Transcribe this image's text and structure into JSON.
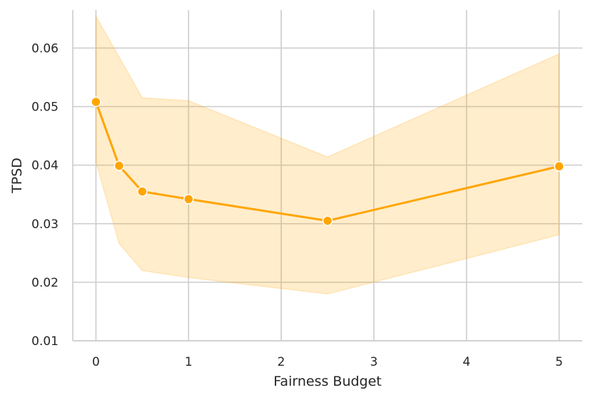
{
  "chart_data": {
    "type": "line",
    "xlabel": "Fairness Budget",
    "ylabel": "TPSD",
    "xlim": [
      -0.25,
      5.25
    ],
    "ylim": [
      0.01,
      0.0665
    ],
    "xticks": [
      0,
      1,
      2,
      3,
      4,
      5
    ],
    "yticks": [
      0.01,
      0.02,
      0.03,
      0.04,
      0.05,
      0.06
    ],
    "xtick_labels": [
      "0",
      "1",
      "2",
      "3",
      "4",
      "5"
    ],
    "ytick_labels": [
      "0.01",
      "0.02",
      "0.03",
      "0.04",
      "0.05",
      "0.06"
    ],
    "grid": true,
    "series": [
      {
        "x": [
          0,
          0.25,
          0.5,
          1,
          2.5,
          5
        ],
        "y": [
          0.0508,
          0.0399,
          0.0355,
          0.0342,
          0.0305,
          0.0398
        ],
        "lower": [
          0.0405,
          0.0266,
          0.022,
          0.0208,
          0.018,
          0.0281
        ],
        "upper": [
          0.0654,
          0.0585,
          0.0515,
          0.051,
          0.0414,
          0.059
        ],
        "color": "#FFA500",
        "band_color": "#FFA500"
      }
    ]
  }
}
